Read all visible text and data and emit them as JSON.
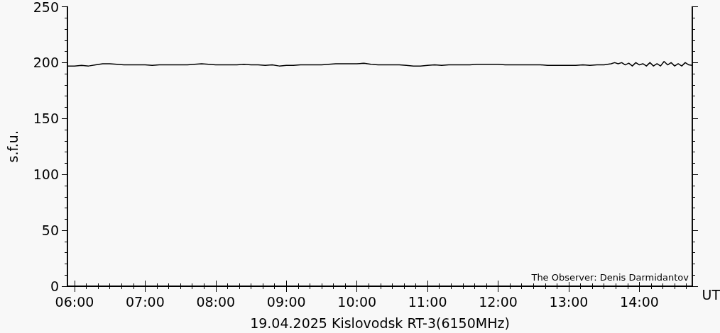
{
  "chart_data": {
    "type": "line",
    "xlabel": "19.04.2025 Kislovodsk RT-3(6150MHz)",
    "ylabel": "s.f.u.",
    "annotations": [
      "UT",
      "The Observer: Denis Darmidantov"
    ],
    "xlim": [
      5.9,
      14.75
    ],
    "ylim": [
      0,
      250
    ],
    "xticks": [
      {
        "value": 6,
        "label": "06:00"
      },
      {
        "value": 7,
        "label": "07:00"
      },
      {
        "value": 8,
        "label": "08:00"
      },
      {
        "value": 9,
        "label": "09:00"
      },
      {
        "value": 10,
        "label": "10:00"
      },
      {
        "value": 11,
        "label": "11:00"
      },
      {
        "value": 12,
        "label": "12:00"
      },
      {
        "value": 13,
        "label": "13:00"
      },
      {
        "value": 14,
        "label": "14:00"
      }
    ],
    "yticks": [
      0,
      50,
      100,
      150,
      200,
      250
    ],
    "marker": "none",
    "line_style": "solid",
    "series": [
      {
        "color": "#000000",
        "x": [
          5.9,
          6.0,
          6.1,
          6.2,
          6.3,
          6.4,
          6.5,
          6.6,
          6.7,
          6.8,
          6.9,
          7.0,
          7.1,
          7.2,
          7.3,
          7.4,
          7.5,
          7.6,
          7.7,
          7.8,
          7.9,
          8.0,
          8.1,
          8.2,
          8.3,
          8.4,
          8.5,
          8.6,
          8.7,
          8.8,
          8.9,
          9.0,
          9.1,
          9.2,
          9.3,
          9.4,
          9.5,
          9.6,
          9.7,
          9.8,
          9.9,
          10.0,
          10.1,
          10.2,
          10.3,
          10.4,
          10.5,
          10.6,
          10.7,
          10.8,
          10.9,
          11.0,
          11.1,
          11.2,
          11.3,
          11.4,
          11.5,
          11.6,
          11.7,
          11.8,
          11.9,
          12.0,
          12.1,
          12.2,
          12.3,
          12.4,
          12.5,
          12.6,
          12.7,
          12.8,
          12.9,
          13.0,
          13.1,
          13.2,
          13.3,
          13.4,
          13.5,
          13.6,
          13.65,
          13.7,
          13.75,
          13.8,
          13.85,
          13.9,
          13.95,
          14.0,
          14.05,
          14.1,
          14.15,
          14.2,
          14.25,
          14.3,
          14.35,
          14.4,
          14.45,
          14.5,
          14.55,
          14.6,
          14.65,
          14.7,
          14.75
        ],
        "values": [
          197,
          197,
          197.5,
          197,
          198,
          199,
          199,
          198.5,
          198,
          198,
          198,
          198,
          197.5,
          198,
          198,
          198,
          198,
          198,
          198.5,
          199,
          198.5,
          198,
          198,
          198,
          198,
          198.5,
          198,
          198,
          197.5,
          198,
          197,
          197.5,
          197.5,
          198,
          198,
          198,
          198,
          198.5,
          199,
          199,
          199,
          199,
          199.5,
          198.5,
          198,
          198,
          198,
          198,
          197.5,
          197,
          197,
          197.5,
          198,
          197.5,
          198,
          198,
          198,
          198,
          198.5,
          198.5,
          198.5,
          198.5,
          198,
          198,
          198,
          198,
          198,
          198,
          197.5,
          197.5,
          197.5,
          197.5,
          197.5,
          198,
          197.5,
          198,
          198,
          199,
          200,
          199,
          200,
          198,
          199.5,
          197,
          200,
          198,
          199,
          197,
          200,
          197,
          199,
          197,
          201,
          198,
          200,
          197,
          199,
          197,
          200,
          198,
          197.5
        ]
      }
    ]
  }
}
